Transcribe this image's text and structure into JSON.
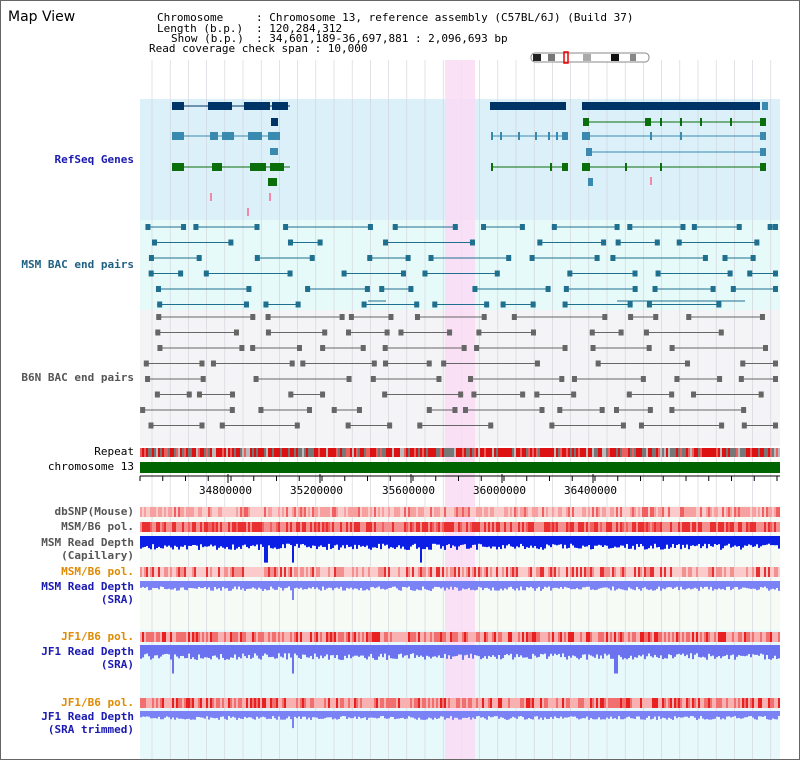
{
  "page": {
    "title": "Map View"
  },
  "info": {
    "chromosome_key": "Chromosome",
    "chromosome_value": ": Chromosome 13, reference assembly (C57BL/6J) (Build 37)",
    "length_key": "Length (b.p.)",
    "length_value": ": 120,284,312",
    "show_key": "Show (b.p.)",
    "show_value": ": 34,601,189-36,697,881 : 2,096,693 bp",
    "coverage": "Read coverage check span : 10,000"
  },
  "tracks": {
    "refseq": "RefSeq Genes",
    "msm_bac": "MSM BAC end pairs",
    "b6n_bac": "B6N BAC end pairs",
    "repeat": "Repeat",
    "chromosome": "chromosome 13",
    "dbsnp": "dbSNP(Mouse)",
    "msm_pol": "MSM/B6 pol.",
    "msm_depth_cap_1": "MSM Read Depth",
    "msm_depth_cap_2": "(Capillary)",
    "msm_b6_pol_orange": "MSM/B6 pol.",
    "msm_depth_sra_1": "MSM Read Depth",
    "msm_depth_sra_2": "(SRA)",
    "jf1_pol_1": "JF1/B6 pol.",
    "jf1_depth_sra_1": "JF1 Read Depth",
    "jf1_depth_sra_2": "(SRA)",
    "jf1_pol_2": "JF1/B6 pol.",
    "jf1_depth_trim_1": "JF1 Read Depth",
    "jf1_depth_trim_2": "(SRA trimmed)"
  },
  "axis": {
    "ticks": [
      "34800000",
      "35200000",
      "35600000",
      "36000000",
      "36400000"
    ]
  },
  "colors": {
    "refseq_bg": "#dcf0fa",
    "bac_bg": "#e6fafa",
    "highlight": "#fadcf5",
    "chromosome": "#006400",
    "navy": "#003366",
    "teal_gene": "#3a8ab0",
    "green_gene": "#0a6e0a",
    "depth_blue": "#0a1ee6",
    "depth_sra": "#7a82f5"
  }
}
